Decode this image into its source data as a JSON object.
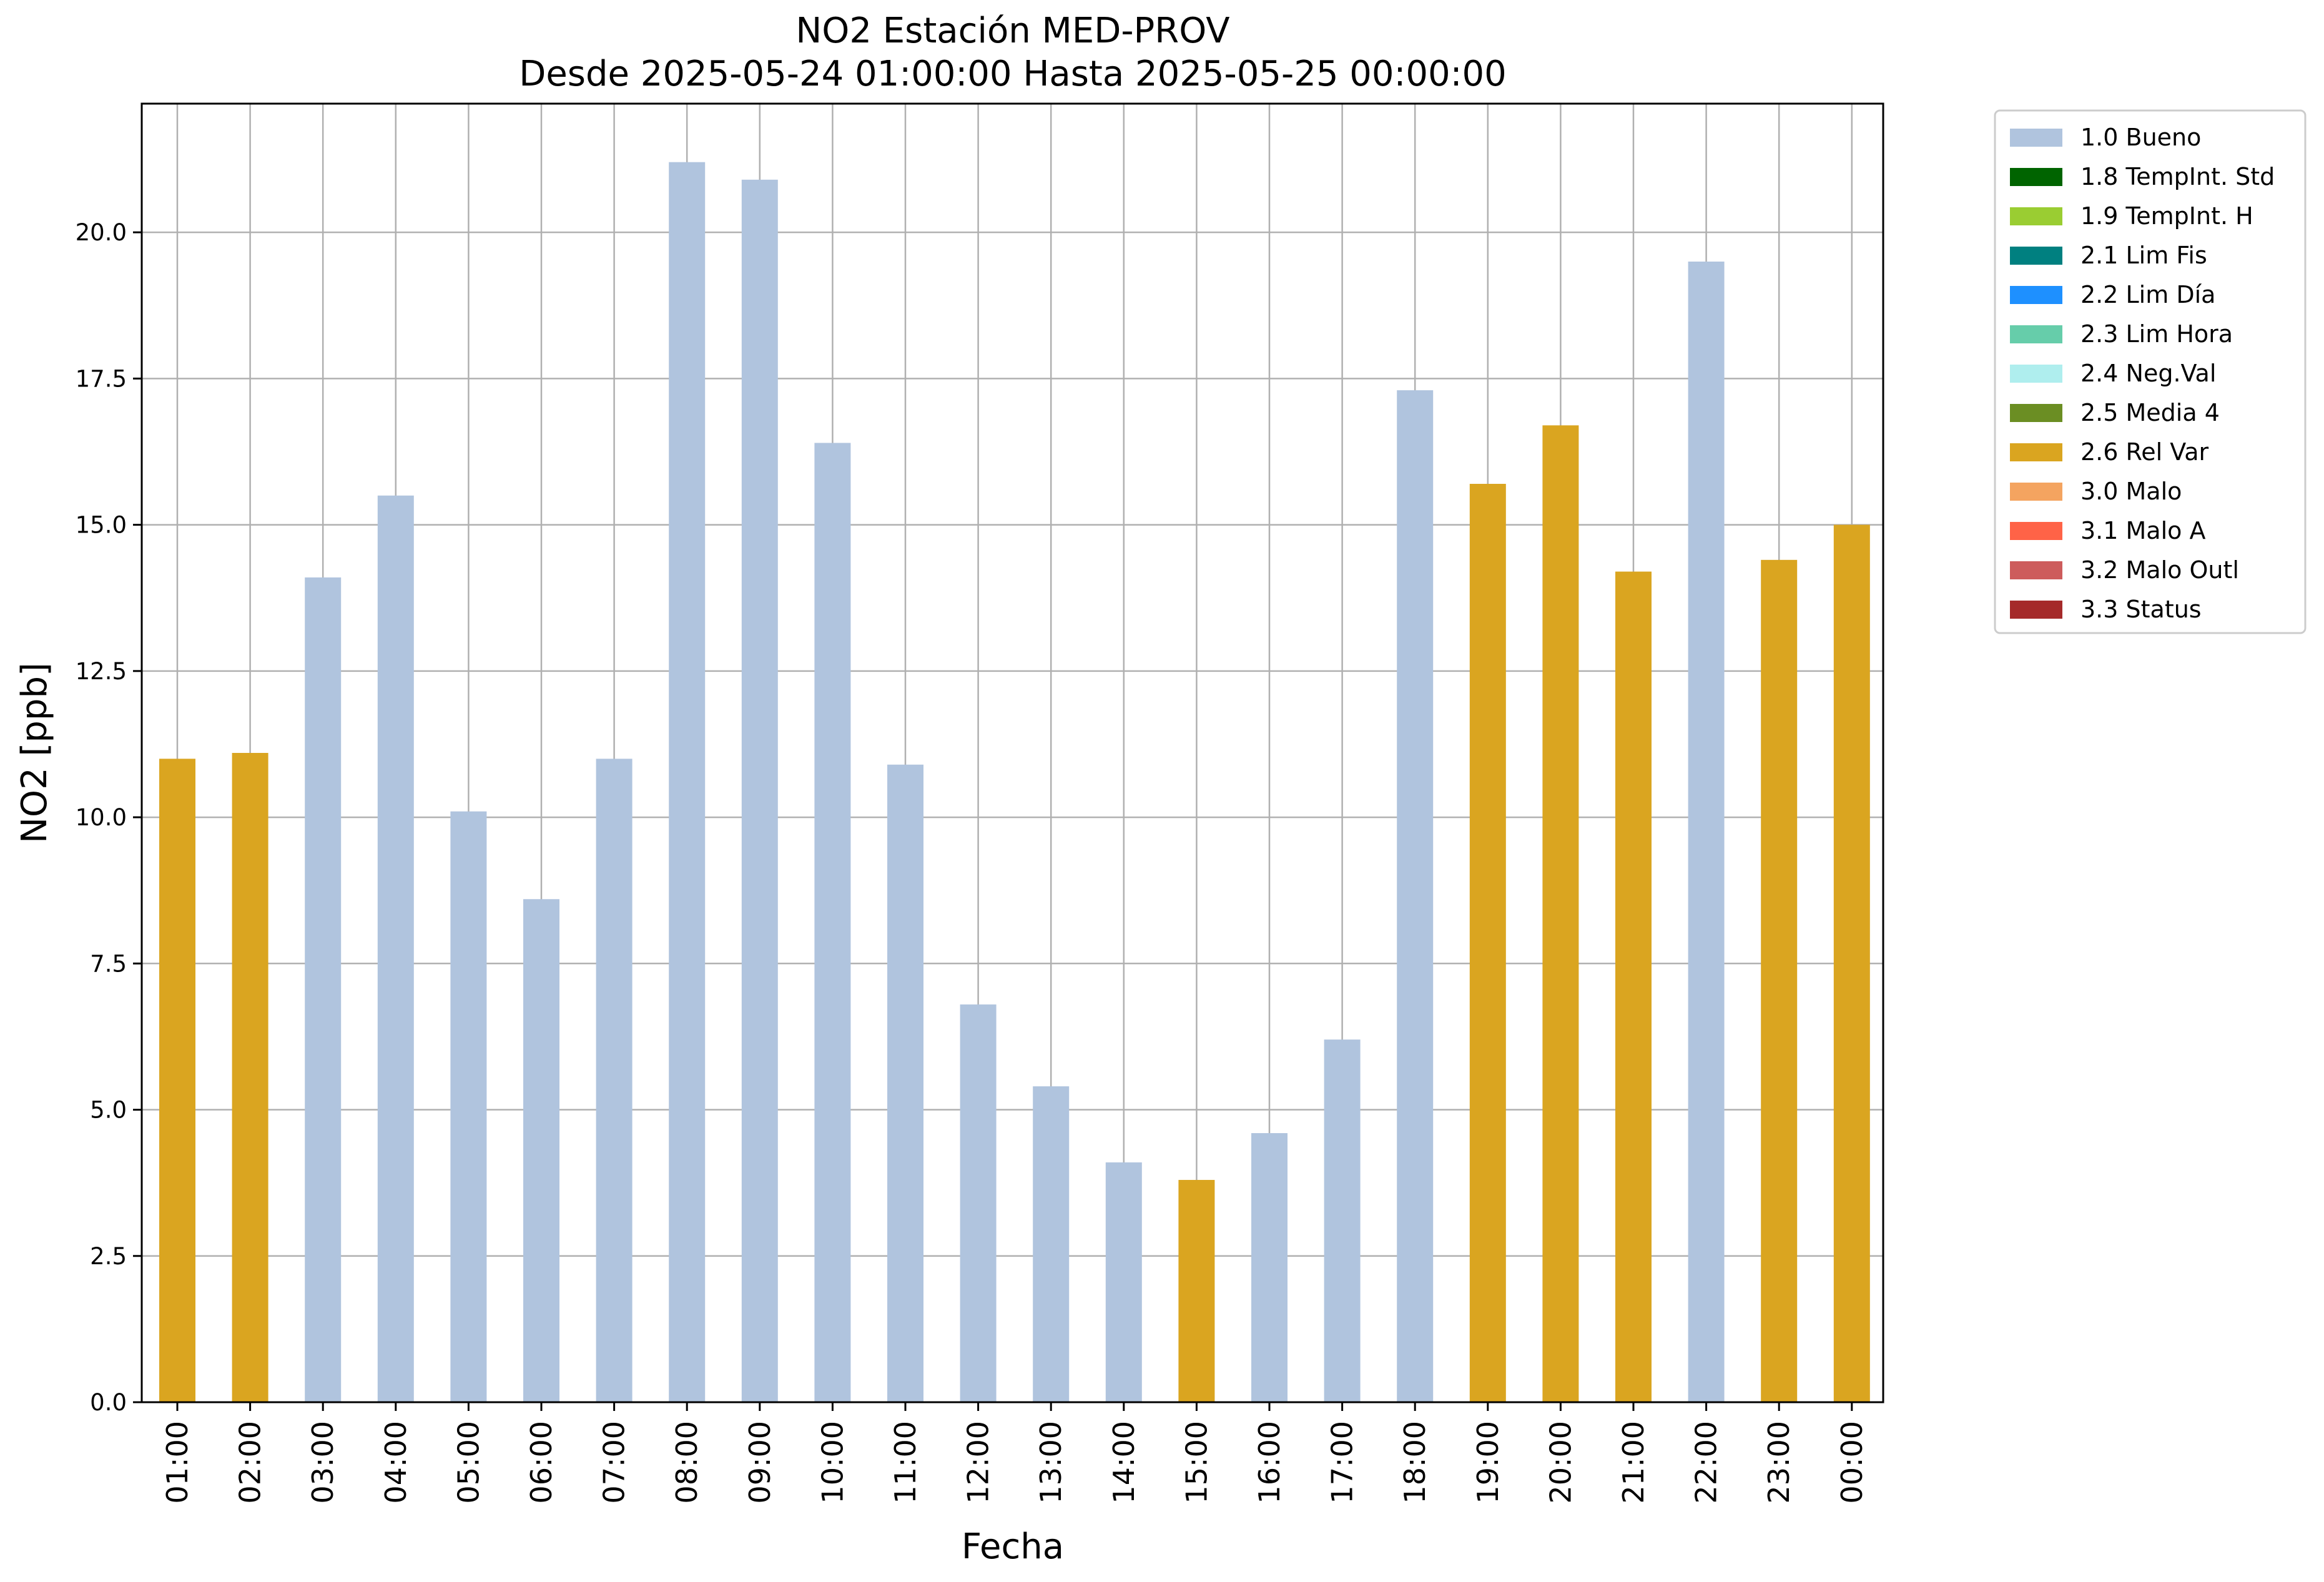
{
  "chart_data": {
    "type": "bar",
    "title_line1": "NO2 Estación MED-PROV",
    "title_line2": "Desde 2025-05-24 01:00:00 Hasta 2025-05-25 00:00:00",
    "xlabel": "Fecha",
    "ylabel": "NO2 [ppb]",
    "ylim": [
      0,
      22.2
    ],
    "yticks": [
      "0.0",
      "2.5",
      "5.0",
      "7.5",
      "10.0",
      "12.5",
      "15.0",
      "17.5",
      "20.0"
    ],
    "grid": true,
    "legend_position": "outside-right-top",
    "categories": [
      "01:00",
      "02:00",
      "03:00",
      "04:00",
      "05:00",
      "06:00",
      "07:00",
      "08:00",
      "09:00",
      "10:00",
      "11:00",
      "12:00",
      "13:00",
      "14:00",
      "15:00",
      "16:00",
      "17:00",
      "18:00",
      "19:00",
      "20:00",
      "21:00",
      "22:00",
      "23:00",
      "00:00"
    ],
    "values": [
      11.0,
      11.1,
      14.1,
      15.5,
      10.1,
      8.6,
      11.0,
      21.2,
      20.9,
      16.4,
      10.9,
      6.8,
      5.4,
      4.1,
      3.8,
      4.6,
      6.2,
      17.3,
      15.7,
      16.7,
      14.2,
      19.5,
      14.4,
      15.0
    ],
    "flags": [
      "2.6 Rel Var",
      "2.6 Rel Var",
      "1.0 Bueno",
      "1.0 Bueno",
      "1.0 Bueno",
      "1.0 Bueno",
      "1.0 Bueno",
      "1.0 Bueno",
      "1.0 Bueno",
      "1.0 Bueno",
      "1.0 Bueno",
      "1.0 Bueno",
      "1.0 Bueno",
      "1.0 Bueno",
      "2.6 Rel Var",
      "1.0 Bueno",
      "1.0 Bueno",
      "1.0 Bueno",
      "2.6 Rel Var",
      "2.6 Rel Var",
      "2.6 Rel Var",
      "1.0 Bueno",
      "2.6 Rel Var",
      "2.6 Rel Var"
    ],
    "legend": [
      {
        "label": "1.0 Bueno",
        "color": "#b0c4de"
      },
      {
        "label": "1.8 TempInt. Std",
        "color": "#006400"
      },
      {
        "label": "1.9 TempInt. H",
        "color": "#9acd32"
      },
      {
        "label": "2.1 Lim Fis",
        "color": "#008080"
      },
      {
        "label": "2.2 Lim Día",
        "color": "#1e90ff"
      },
      {
        "label": "2.3 Lim Hora",
        "color": "#66cdaa"
      },
      {
        "label": "2.4 Neg.Val",
        "color": "#afeeee"
      },
      {
        "label": "2.5 Media 4",
        "color": "#6b8e23"
      },
      {
        "label": "2.6 Rel Var",
        "color": "#daa520"
      },
      {
        "label": "3.0 Malo",
        "color": "#f4a460"
      },
      {
        "label": "3.1 Malo A",
        "color": "#ff6347"
      },
      {
        "label": "3.2 Malo Outl",
        "color": "#cd5c5c"
      },
      {
        "label": "3.3 Status",
        "color": "#a52a2a"
      }
    ]
  }
}
